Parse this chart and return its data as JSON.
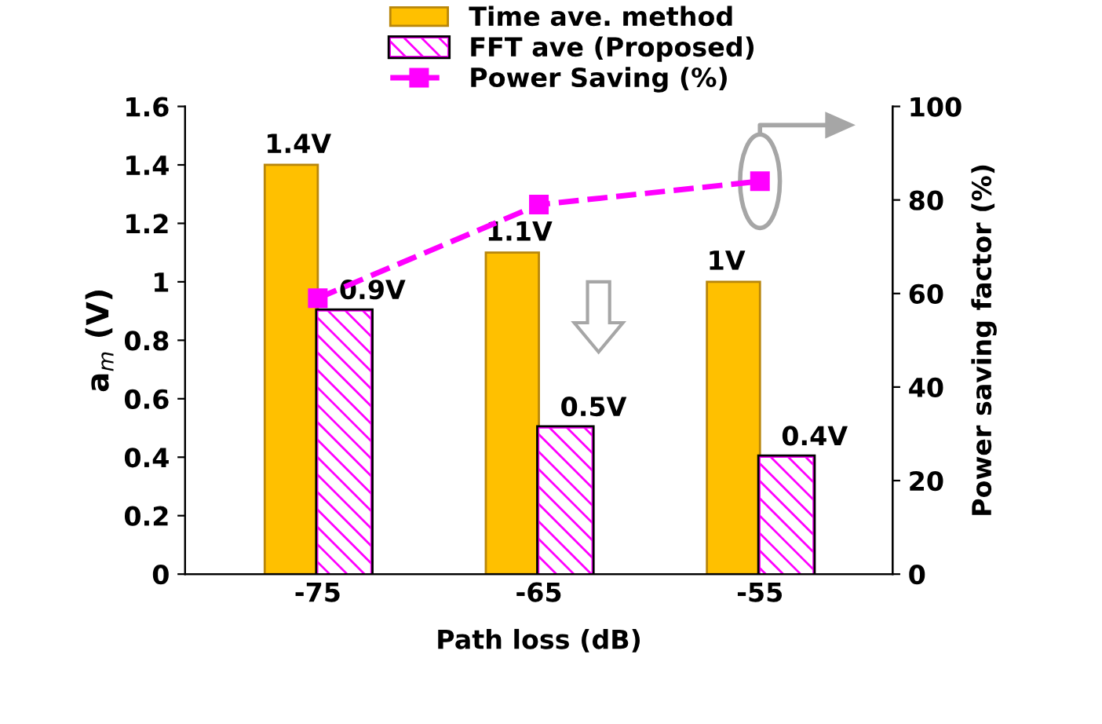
{
  "chart_data": {
    "type": "bar",
    "xlabel": "Path loss (dB)",
    "ylabel": "a$_{m}$ (V)",
    "y2label": "Power saving factor (%)",
    "categories": [
      "-75",
      "-65",
      "-55"
    ],
    "series": [
      {
        "name": "Time ave. method",
        "color": "#ffc000",
        "values": [
          1.4,
          1.1,
          1.0
        ],
        "value_labels": [
          "1.4V",
          "1.1V",
          "1V"
        ]
      },
      {
        "name": "FFT ave (Proposed)",
        "color": "#ff00ff",
        "values": [
          0.9,
          0.5,
          0.4
        ],
        "value_labels": [
          "0.9V",
          "0.5V",
          "0.4V"
        ]
      },
      {
        "name": "Power Saving (%)",
        "type": "line",
        "axis": "y2",
        "color": "#ff00ff",
        "values": [
          59,
          79,
          84
        ],
        "marker": "square",
        "line_style": "dashed"
      }
    ],
    "ylim": [
      0,
      1.6
    ],
    "yticks": [
      0,
      0.2,
      0.4,
      0.6,
      0.8,
      1,
      1.2,
      1.4,
      1.6
    ],
    "y2lim": [
      0,
      100
    ],
    "y2ticks": [
      0,
      20,
      40,
      60,
      80,
      100
    ],
    "grid": false,
    "legend": "top"
  }
}
